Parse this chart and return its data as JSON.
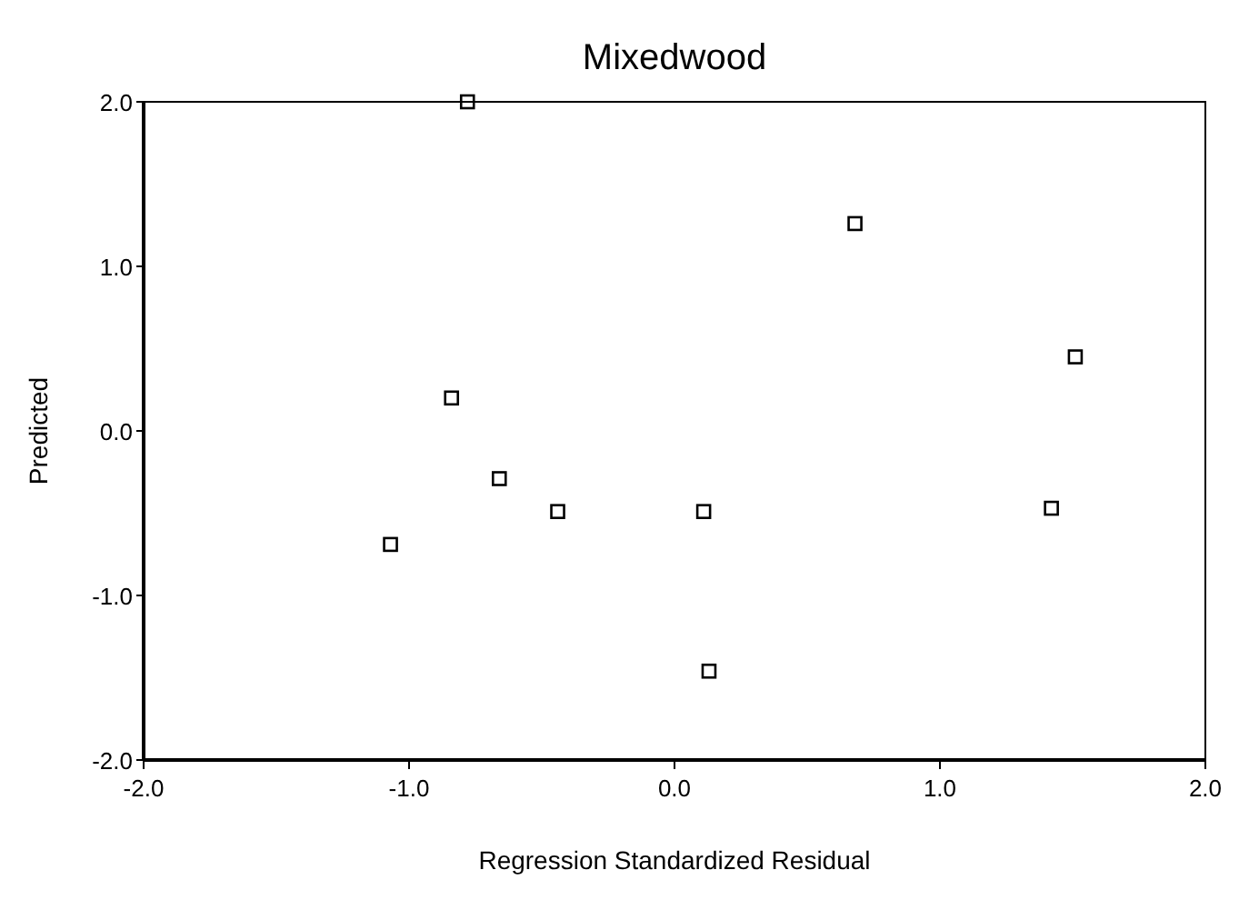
{
  "chart_data": {
    "type": "scatter",
    "title": "Mixedwood",
    "xlabel": "Regression Standardized Residual",
    "ylabel": "Predicted",
    "marker": "square",
    "grid": false,
    "xlim": [
      -2,
      2
    ],
    "ylim": [
      -2,
      2
    ],
    "xticks": [
      {
        "value": -2,
        "label": "-2.0"
      },
      {
        "value": -1,
        "label": "-1.0"
      },
      {
        "value": 0,
        "label": "0.0"
      },
      {
        "value": 1,
        "label": "1.0"
      },
      {
        "value": 2,
        "label": "2.0"
      }
    ],
    "yticks": [
      {
        "value": -2,
        "label": "-2.0"
      },
      {
        "value": -1,
        "label": "-1.0"
      },
      {
        "value": 0,
        "label": "0.0"
      },
      {
        "value": 1,
        "label": "1.0"
      },
      {
        "value": 2,
        "label": "2.0"
      }
    ],
    "series": [
      {
        "color": "#000000",
        "x": [
          -0.78,
          0.68,
          1.51,
          -0.84,
          -0.66,
          -0.44,
          0.11,
          1.42,
          -1.07,
          0.13
        ],
        "values": [
          2.0,
          1.26,
          0.45,
          0.2,
          -0.29,
          -0.49,
          -0.49,
          -0.47,
          -0.69,
          -1.46
        ]
      }
    ]
  }
}
